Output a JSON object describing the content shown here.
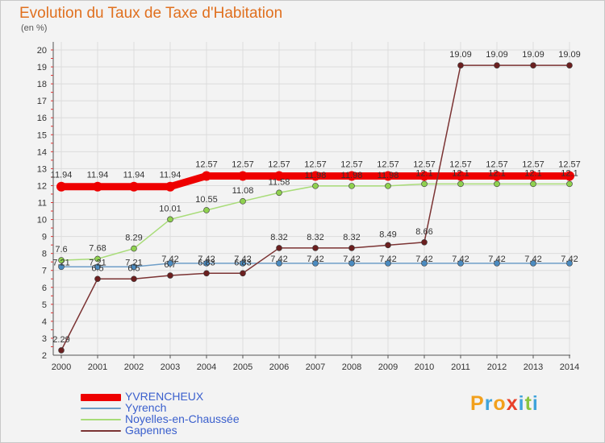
{
  "title": "Evolution du Taux de Taxe d'Habitation",
  "subtitle": "(en %)",
  "logo": {
    "letters": [
      "P",
      "r",
      "o",
      "x",
      "i",
      "t",
      "i"
    ],
    "colors": [
      "#f2a01c",
      "#3fa3db",
      "#f2a01c",
      "#e8402a",
      "#3fa3db",
      "#8ac43f",
      "#3fa3db"
    ]
  },
  "chart_data": {
    "type": "line",
    "x": [
      2000,
      2001,
      2002,
      2003,
      2004,
      2005,
      2006,
      2007,
      2008,
      2009,
      2010,
      2011,
      2012,
      2013,
      2014
    ],
    "ylim": [
      2,
      20
    ],
    "yticks": [
      2,
      3,
      4,
      5,
      6,
      7,
      8,
      9,
      10,
      11,
      12,
      13,
      14,
      15,
      16,
      17,
      18,
      19,
      20
    ],
    "grid": true,
    "legend_position": "bottom-left",
    "series": [
      {
        "name": "YVRENCHEUX",
        "color": "#ee0000",
        "width": 9,
        "values": [
          11.94,
          11.94,
          11.94,
          11.94,
          12.57,
          12.57,
          12.57,
          12.57,
          12.57,
          12.57,
          12.57,
          12.57,
          12.57,
          12.57,
          12.57
        ],
        "labels": [
          "11.94",
          "11.94",
          "11.94",
          "11.94",
          "12.57",
          "12.57",
          "12.57",
          "12.57",
          "12.57",
          "12.57",
          "12.57",
          "12.57",
          "12.57",
          "12.57",
          "12.57"
        ]
      },
      {
        "name": "Yyrench",
        "color": "#6e9ec8",
        "width": 1.5,
        "values": [
          7.21,
          7.21,
          7.21,
          7.42,
          7.42,
          7.42,
          7.42,
          7.42,
          7.42,
          7.42,
          7.42,
          7.42,
          7.42,
          7.42,
          7.42
        ],
        "labels": [
          "7.21",
          "7.21",
          "7.21",
          "7.42",
          "7.42",
          "7.42",
          "7.42",
          "7.42",
          "7.42",
          "7.42",
          "7.42",
          "7.42",
          "7.42",
          "7.42",
          "7.42"
        ]
      },
      {
        "name": "Noyelles-en-Chaussée",
        "color": "#a8dc78",
        "width": 1.5,
        "values": [
          7.6,
          7.68,
          8.29,
          10.01,
          10.55,
          11.08,
          11.58,
          11.98,
          11.98,
          11.98,
          12.1,
          12.1,
          12.1,
          12.1,
          12.1
        ],
        "labels": [
          "7.6",
          "7.68",
          "8.29",
          "10.01",
          "10.55",
          "11.08",
          "11.58",
          "11.98",
          "11.98",
          "11.98",
          "12.1",
          "12.1",
          "12.1",
          "12.1",
          "12.1"
        ]
      },
      {
        "name": "Gapennes",
        "color": "#7b3333",
        "width": 1.5,
        "values": [
          2.29,
          6.5,
          6.5,
          6.7,
          6.83,
          6.83,
          8.32,
          8.32,
          8.32,
          8.49,
          8.66,
          19.09,
          19.09,
          19.09,
          19.09
        ],
        "labels": [
          "2.29",
          "6.5",
          "6.5",
          "6.7",
          "6.83",
          "6.83",
          "8.32",
          "8.32",
          "8.32",
          "8.49",
          "8.66",
          "19.09",
          "19.09",
          "19.09",
          "19.09"
        ]
      }
    ]
  }
}
